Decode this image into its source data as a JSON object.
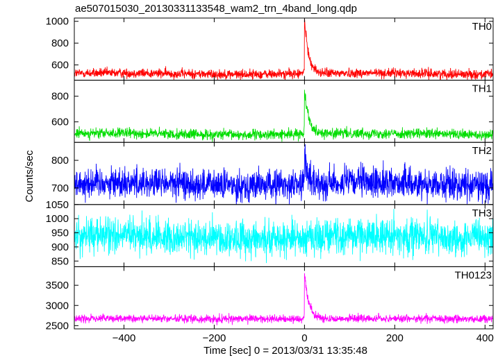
{
  "chart_data": {
    "type": "line",
    "title": "ae507015030_20130331133548_wam2_trn_4band_long.qdp",
    "xlabel": "Time [sec] 0 = 2013/03/31 13:35:48",
    "ylabel": "Counts/sec",
    "xlim": [
      -510,
      418
    ],
    "x_ticks": [
      -400,
      -200,
      0,
      200,
      400
    ],
    "grid": false,
    "panels": [
      {
        "name": "TH0",
        "color": "#ff0000",
        "ylim": [
          460,
          1030
        ],
        "y_ticks": [
          600,
          800,
          1000
        ],
        "baseline": 520,
        "noise": 22,
        "burst": {
          "peak": 1020,
          "decay_sec": 9
        },
        "approx_series": {
          "x": [
            -500,
            -400,
            -300,
            -200,
            -100,
            -20,
            -5,
            0,
            2,
            5,
            10,
            20,
            40,
            100,
            200,
            300,
            400
          ],
          "y": [
            515,
            520,
            522,
            525,
            520,
            530,
            560,
            1020,
            760,
            640,
            590,
            555,
            540,
            530,
            528,
            522,
            515
          ]
        }
      },
      {
        "name": "TH1",
        "color": "#00dd00",
        "ylim": [
          440,
          925
        ],
        "y_ticks": [
          600,
          800
        ],
        "baseline": 505,
        "noise": 20,
        "burst": {
          "peak": 855,
          "decay_sec": 10
        },
        "approx_series": {
          "x": [
            -500,
            -400,
            -300,
            -200,
            -100,
            -20,
            -5,
            0,
            2,
            5,
            10,
            20,
            40,
            100,
            200,
            300,
            400
          ],
          "y": [
            505,
            508,
            510,
            512,
            510,
            515,
            540,
            855,
            700,
            620,
            580,
            545,
            530,
            520,
            515,
            510,
            505
          ]
        }
      },
      {
        "name": "TH2",
        "color": "#0000ff",
        "ylim": [
          640,
          865
        ],
        "y_ticks": [
          700,
          800
        ],
        "baseline": 715,
        "noise": 28,
        "burst": {
          "peak": 850,
          "decay_sec": 5
        },
        "approx_series": {
          "x": [
            -500,
            -400,
            -300,
            -200,
            -100,
            -5,
            0,
            3,
            10,
            100,
            200,
            300,
            400
          ],
          "y": [
            715,
            718,
            720,
            722,
            718,
            720,
            850,
            770,
            735,
            720,
            718,
            716,
            712
          ]
        }
      },
      {
        "name": "TH3",
        "color": "#00ffff",
        "ylim": [
          830,
          1050
        ],
        "y_ticks": [
          850,
          900,
          950,
          1000,
          1050
        ],
        "baseline": 935,
        "noise": 32,
        "burst": null,
        "approx_series": {
          "x": [
            -500,
            -400,
            -300,
            -200,
            -100,
            0,
            100,
            200,
            300,
            400
          ],
          "y": [
            930,
            935,
            940,
            945,
            940,
            935,
            940,
            942,
            935,
            930
          ]
        }
      },
      {
        "name": "TH0123",
        "color": "#ff00ff",
        "ylim": [
          2420,
          3960
        ],
        "y_ticks": [
          2500,
          3000,
          3500
        ],
        "baseline": 2670,
        "noise": 50,
        "burst": {
          "peak": 3850,
          "decay_sec": 9
        },
        "approx_series": {
          "x": [
            -500,
            -400,
            -300,
            -200,
            -100,
            -20,
            -5,
            0,
            2,
            5,
            10,
            20,
            40,
            100,
            200,
            300,
            400
          ],
          "y": [
            2650,
            2670,
            2700,
            2720,
            2700,
            2720,
            2800,
            3850,
            3300,
            3000,
            2900,
            2780,
            2730,
            2710,
            2700,
            2680,
            2650
          ]
        }
      }
    ]
  }
}
